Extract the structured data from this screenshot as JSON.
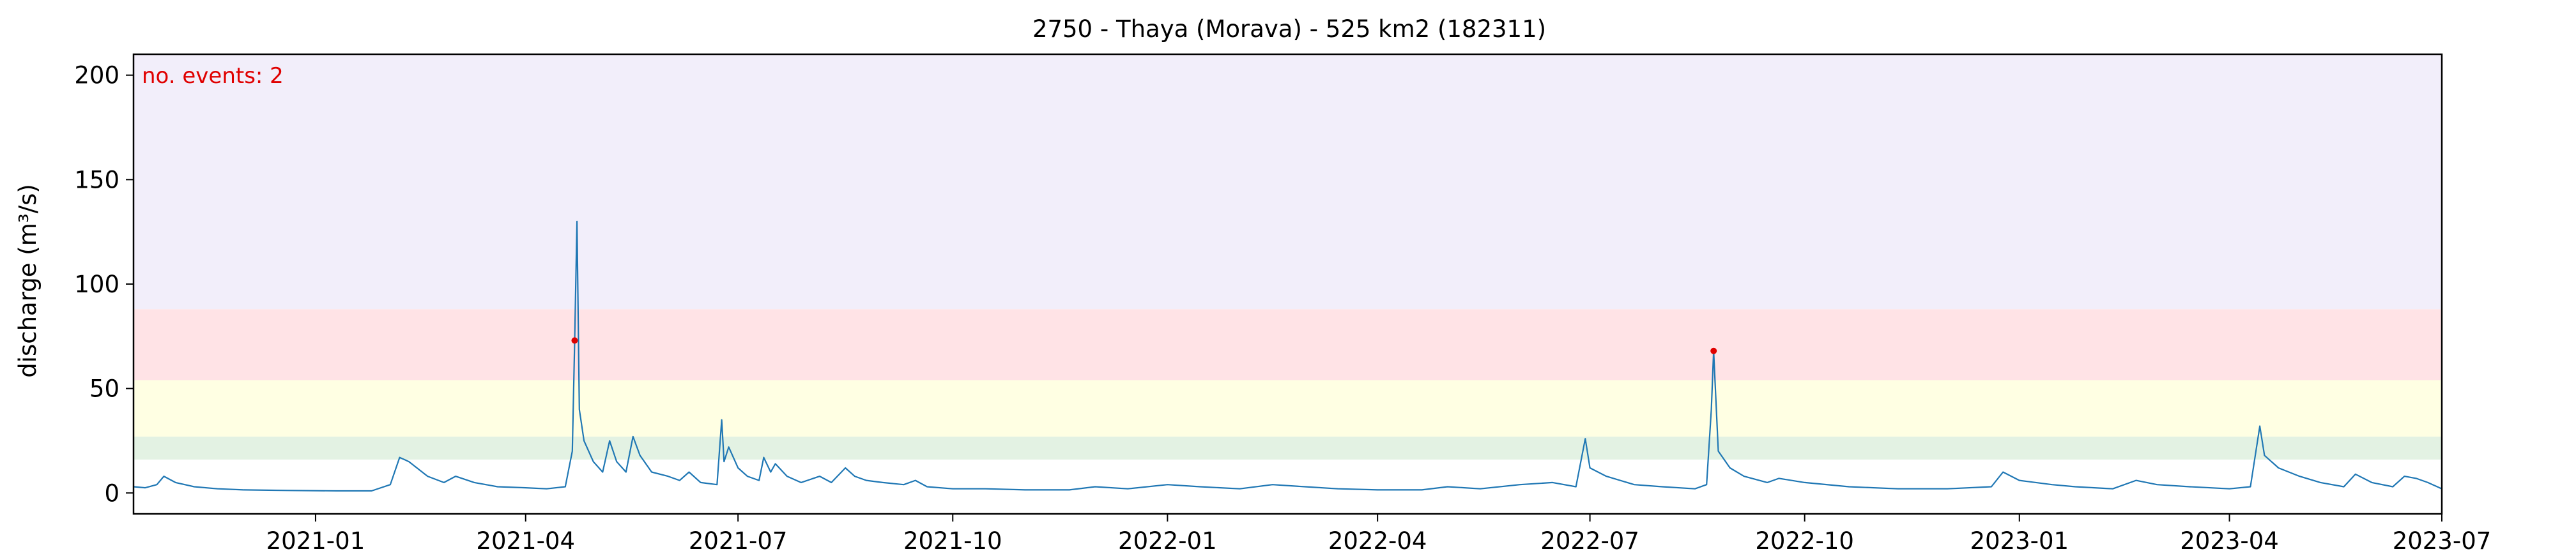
{
  "chart_data": {
    "type": "line",
    "title": "2750 - Thaya (Morava) - 525 km2 (182311)",
    "xlabel": "",
    "ylabel": "discharge (m³/s)",
    "xlim": [
      "2020-10-15",
      "2023-07-01"
    ],
    "ylim": [
      -10,
      210
    ],
    "xticks": [
      "2021-01",
      "2021-04",
      "2021-07",
      "2021-10",
      "2022-01",
      "2022-04",
      "2022-07",
      "2022-10",
      "2023-01",
      "2023-04",
      "2023-07"
    ],
    "yticks": [
      0,
      50,
      100,
      150,
      200
    ],
    "grid": false,
    "legend": "none",
    "annotation": "no. events: 2",
    "bands": [
      {
        "from": 16,
        "to": 27,
        "color": "#e3f2e3"
      },
      {
        "from": 27,
        "to": 54,
        "color": "#ffffe3"
      },
      {
        "from": 54,
        "to": 88,
        "color": "#ffe3e6"
      },
      {
        "from": 88,
        "to": 210,
        "color": "#f2eefa"
      }
    ],
    "series": [
      {
        "color": "#1f77b4",
        "points": [
          [
            "2020-10-15",
            3
          ],
          [
            "2020-10-20",
            2.5
          ],
          [
            "2020-10-25",
            4
          ],
          [
            "2020-10-28",
            8
          ],
          [
            "2020-11-02",
            5
          ],
          [
            "2020-11-10",
            3
          ],
          [
            "2020-11-20",
            2
          ],
          [
            "2020-12-01",
            1.5
          ],
          [
            "2020-12-20",
            1.2
          ],
          [
            "2021-01-10",
            1
          ],
          [
            "2021-01-25",
            1
          ],
          [
            "2021-02-02",
            4
          ],
          [
            "2021-02-06",
            17
          ],
          [
            "2021-02-10",
            15
          ],
          [
            "2021-02-18",
            8
          ],
          [
            "2021-02-25",
            5
          ],
          [
            "2021-03-02",
            8
          ],
          [
            "2021-03-10",
            5
          ],
          [
            "2021-03-20",
            3
          ],
          [
            "2021-04-01",
            2.5
          ],
          [
            "2021-04-10",
            2
          ],
          [
            "2021-04-18",
            3
          ],
          [
            "2021-04-21",
            20
          ],
          [
            "2021-04-22",
            73
          ],
          [
            "2021-04-23",
            130
          ],
          [
            "2021-04-24",
            40
          ],
          [
            "2021-04-26",
            25
          ],
          [
            "2021-04-30",
            15
          ],
          [
            "2021-05-04",
            10
          ],
          [
            "2021-05-07",
            25
          ],
          [
            "2021-05-10",
            15
          ],
          [
            "2021-05-14",
            10
          ],
          [
            "2021-05-17",
            27
          ],
          [
            "2021-05-20",
            18
          ],
          [
            "2021-05-25",
            10
          ],
          [
            "2021-06-01",
            8
          ],
          [
            "2021-06-06",
            6
          ],
          [
            "2021-06-10",
            10
          ],
          [
            "2021-06-15",
            5
          ],
          [
            "2021-06-22",
            4
          ],
          [
            "2021-06-24",
            35
          ],
          [
            "2021-06-25",
            15
          ],
          [
            "2021-06-27",
            22
          ],
          [
            "2021-07-01",
            12
          ],
          [
            "2021-07-05",
            8
          ],
          [
            "2021-07-10",
            6
          ],
          [
            "2021-07-12",
            17
          ],
          [
            "2021-07-15",
            10
          ],
          [
            "2021-07-17",
            14
          ],
          [
            "2021-07-22",
            8
          ],
          [
            "2021-07-28",
            5
          ],
          [
            "2021-08-05",
            8
          ],
          [
            "2021-08-10",
            5
          ],
          [
            "2021-08-16",
            12
          ],
          [
            "2021-08-20",
            8
          ],
          [
            "2021-08-25",
            6
          ],
          [
            "2021-09-01",
            5
          ],
          [
            "2021-09-10",
            4
          ],
          [
            "2021-09-15",
            6
          ],
          [
            "2021-09-20",
            3
          ],
          [
            "2021-10-01",
            2
          ],
          [
            "2021-10-15",
            2
          ],
          [
            "2021-11-01",
            1.5
          ],
          [
            "2021-11-20",
            1.5
          ],
          [
            "2021-12-01",
            3
          ],
          [
            "2021-12-15",
            2
          ],
          [
            "2022-01-01",
            4
          ],
          [
            "2022-01-15",
            3
          ],
          [
            "2022-02-01",
            2
          ],
          [
            "2022-02-15",
            4
          ],
          [
            "2022-03-01",
            3
          ],
          [
            "2022-03-15",
            2
          ],
          [
            "2022-04-01",
            1.5
          ],
          [
            "2022-04-20",
            1.5
          ],
          [
            "2022-05-01",
            3
          ],
          [
            "2022-05-15",
            2
          ],
          [
            "2022-06-01",
            4
          ],
          [
            "2022-06-15",
            5
          ],
          [
            "2022-06-25",
            3
          ],
          [
            "2022-06-29",
            26
          ],
          [
            "2022-07-01",
            12
          ],
          [
            "2022-07-08",
            8
          ],
          [
            "2022-07-20",
            4
          ],
          [
            "2022-08-01",
            3
          ],
          [
            "2022-08-15",
            2
          ],
          [
            "2022-08-20",
            4
          ],
          [
            "2022-08-22",
            40
          ],
          [
            "2022-08-23",
            68
          ],
          [
            "2022-08-25",
            20
          ],
          [
            "2022-08-30",
            12
          ],
          [
            "2022-09-05",
            8
          ],
          [
            "2022-09-15",
            5
          ],
          [
            "2022-09-20",
            7
          ],
          [
            "2022-10-01",
            5
          ],
          [
            "2022-10-20",
            3
          ],
          [
            "2022-11-10",
            2
          ],
          [
            "2022-12-01",
            2
          ],
          [
            "2022-12-20",
            3
          ],
          [
            "2022-12-25",
            10
          ],
          [
            "2023-01-01",
            6
          ],
          [
            "2023-01-15",
            4
          ],
          [
            "2023-01-25",
            3
          ],
          [
            "2023-02-10",
            2
          ],
          [
            "2023-02-20",
            6
          ],
          [
            "2023-03-01",
            4
          ],
          [
            "2023-03-15",
            3
          ],
          [
            "2023-04-01",
            2
          ],
          [
            "2023-04-10",
            3
          ],
          [
            "2023-04-14",
            32
          ],
          [
            "2023-04-16",
            18
          ],
          [
            "2023-04-22",
            12
          ],
          [
            "2023-05-01",
            8
          ],
          [
            "2023-05-10",
            5
          ],
          [
            "2023-05-20",
            3
          ],
          [
            "2023-05-25",
            9
          ],
          [
            "2023-06-01",
            5
          ],
          [
            "2023-06-10",
            3
          ],
          [
            "2023-06-15",
            8
          ],
          [
            "2023-06-20",
            7
          ],
          [
            "2023-06-25",
            5
          ],
          [
            "2023-07-01",
            2
          ]
        ]
      }
    ],
    "events": [
      {
        "x": "2021-04-22",
        "y": 73,
        "color": "#e00000"
      },
      {
        "x": "2022-08-23",
        "y": 68,
        "color": "#e00000"
      }
    ]
  }
}
